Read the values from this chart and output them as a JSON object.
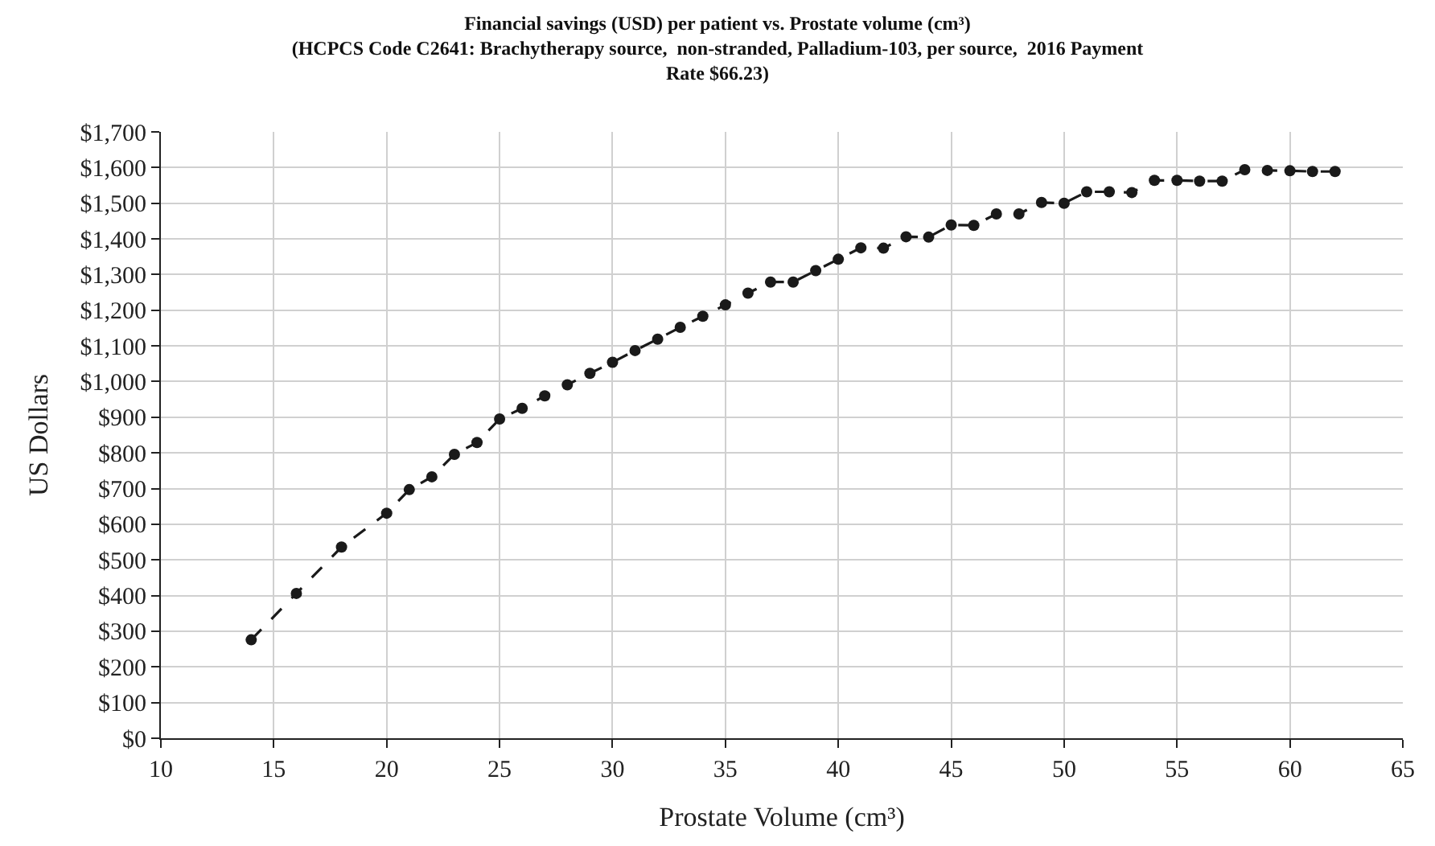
{
  "chart_data": {
    "type": "line",
    "title": "Financial savings (USD) per patient vs. Prostate volume (cm³)\n(HCPCS Code C2641: Brachytherapy source,  non-stranded, Palladium-103, per source,  2016 Payment\nRate $66.23)",
    "xlabel": "Prostate Volume (cm³)",
    "ylabel": "US Dollars",
    "x": [
      14,
      16,
      18,
      20,
      21,
      22,
      23,
      24,
      25,
      26,
      27,
      28,
      29,
      30,
      31,
      32,
      33,
      34,
      35,
      36,
      37,
      38,
      39,
      40,
      41,
      42,
      43,
      44,
      45,
      46,
      47,
      48,
      49,
      50,
      51,
      52,
      53,
      54,
      55,
      56,
      57,
      58,
      59,
      60,
      61,
      62
    ],
    "series": [
      {
        "color": "#1a1a1a",
        "values": [
          276,
          406,
          536,
          631,
          697,
          733,
          796,
          829,
          895,
          925,
          960,
          991,
          1023,
          1054,
          1087,
          1119,
          1152,
          1183,
          1215,
          1248,
          1279,
          1279,
          1311,
          1343,
          1375,
          1374,
          1406,
          1405,
          1439,
          1438,
          1470,
          1470,
          1502,
          1500,
          1532,
          1532,
          1530,
          1564,
          1564,
          1562,
          1562,
          1594,
          1592,
          1591,
          1589,
          1589
        ]
      }
    ],
    "xlim": [
      10,
      65
    ],
    "xticks": [
      10,
      15,
      20,
      25,
      30,
      35,
      40,
      45,
      50,
      55,
      60,
      65
    ],
    "ylim": [
      0,
      1700
    ],
    "yticks": [
      {
        "value": 0,
        "label": "$0"
      },
      {
        "value": 100,
        "label": "$100"
      },
      {
        "value": 200,
        "label": "$200"
      },
      {
        "value": 300,
        "label": "$300"
      },
      {
        "value": 400,
        "label": "$400"
      },
      {
        "value": 500,
        "label": "$500"
      },
      {
        "value": 600,
        "label": "$600"
      },
      {
        "value": 700,
        "label": "$700"
      },
      {
        "value": 800,
        "label": "$800"
      },
      {
        "value": 900,
        "label": "$900"
      },
      {
        "value": 1000,
        "label": "$1,000"
      },
      {
        "value": 1100,
        "label": "$1,100"
      },
      {
        "value": 1200,
        "label": "$1,200"
      },
      {
        "value": 1300,
        "label": "$1,300"
      },
      {
        "value": 1400,
        "label": "$1,400"
      },
      {
        "value": 1500,
        "label": "$1,500"
      },
      {
        "value": 1600,
        "label": "$1,600"
      },
      {
        "value": 1700,
        "label": "$1,700"
      }
    ],
    "grid": true,
    "marker": "circle",
    "line_style": "dashed"
  }
}
